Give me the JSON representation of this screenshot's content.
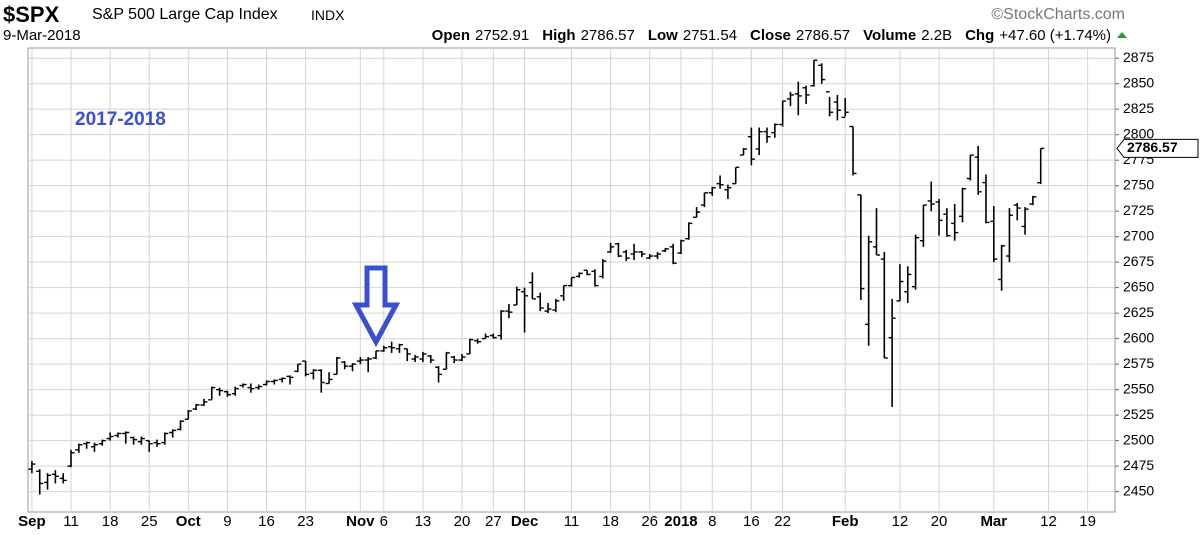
{
  "chart_data": {
    "type": "ohlc",
    "title": "$SPX",
    "subtitle": "S&P 500 Large Cap Index",
    "exchange": "INDX",
    "date": "9-Mar-2018",
    "source": "©StockCharts.com",
    "annotation": "2017-2018",
    "volume_label": "Volume",
    "volume": "2.2B",
    "change_label": "Chg",
    "change": "+47.60 (+1.74%)",
    "color": "#000000",
    "grid": true,
    "ylim": [
      2430,
      2885
    ],
    "yticks": [
      2450,
      2475,
      2500,
      2525,
      2550,
      2575,
      2600,
      2625,
      2650,
      2675,
      2700,
      2725,
      2750,
      2775,
      2800,
      2825,
      2850,
      2875
    ],
    "categories": [
      "Sep",
      null,
      null,
      null,
      null,
      "11",
      null,
      null,
      null,
      null,
      "18",
      null,
      null,
      null,
      null,
      "25",
      null,
      null,
      null,
      null,
      "Oct",
      null,
      null,
      null,
      null,
      "9",
      null,
      null,
      null,
      null,
      "16",
      null,
      null,
      null,
      null,
      "23",
      null,
      null,
      null,
      null,
      null,
      null,
      "Nov",
      null,
      null,
      "6",
      null,
      null,
      null,
      null,
      "13",
      null,
      null,
      null,
      null,
      "20",
      null,
      null,
      null,
      "27",
      null,
      null,
      null,
      "Dec",
      null,
      null,
      null,
      null,
      null,
      "11",
      null,
      null,
      null,
      null,
      "18",
      null,
      null,
      null,
      null,
      "26",
      null,
      null,
      null,
      "2018",
      null,
      null,
      null,
      "8",
      null,
      null,
      null,
      null,
      "16",
      null,
      null,
      null,
      "22",
      null,
      null,
      null,
      null,
      null,
      null,
      null,
      "Feb",
      null,
      null,
      null,
      null,
      null,
      null,
      "12",
      null,
      null,
      null,
      null,
      "20",
      null,
      null,
      null,
      null,
      null,
      null,
      "Mar",
      null,
      null,
      null,
      null,
      null,
      null,
      "12",
      null,
      null,
      null,
      null,
      "19",
      null,
      null,
      null
    ],
    "series": [
      {
        "name": "Open",
        "values": [
          2472,
          2470,
          2459,
          2467,
          2463,
          2475,
          2491,
          2497,
          2494,
          2497,
          2502,
          2505,
          2507,
          2503,
          2499,
          2500,
          2498,
          2498,
          2508,
          2511,
          2521,
          2531,
          2535,
          2540,
          2550,
          2548,
          2546,
          2554,
          2552,
          2552,
          2555,
          2558,
          2560,
          2563,
          2568,
          2578,
          2566,
          2569,
          2556,
          2565,
          2577,
          2573,
          2578,
          2579,
          2581,
          2588,
          2592,
          2590,
          2590,
          2580,
          2580,
          2583,
          2572,
          2570,
          2582,
          2579,
          2585,
          2598,
          2600,
          2603,
          2603,
          2627,
          2633,
          2646,
          2655,
          2641,
          2627,
          2628,
          2642,
          2652,
          2661,
          2667,
          2666,
          2661,
          2685,
          2693,
          2685,
          2683,
          2685,
          2679,
          2681,
          2686,
          2690,
          2684,
          2698,
          2719,
          2731,
          2743,
          2752,
          2746,
          2752,
          2780,
          2798,
          2786,
          2803,
          2802,
          2810,
          2835,
          2840,
          2846,
          2848,
          2868,
          2842,
          2832,
          2817,
          2808,
          2741,
          2614,
          2690,
          2678,
          2601,
          2637,
          2646,
          2651,
          2696,
          2735,
          2734,
          2722,
          2713,
          2720,
          2757,
          2778,
          2753,
          2715,
          2658,
          2681,
          2731,
          2710,
          2732,
          2752.91,
          null,
          null,
          null,
          null,
          null,
          null,
          null,
          null,
          null
        ]
      },
      {
        "name": "High",
        "values": [
          2480,
          2472,
          2468,
          2471,
          2468,
          2491,
          2497,
          2499,
          2498,
          2501,
          2508,
          2508,
          2509,
          2504,
          2504,
          2500,
          2501,
          2508,
          2511,
          2520,
          2530,
          2536,
          2541,
          2553,
          2552,
          2549,
          2553,
          2556,
          2556,
          2555,
          2559,
          2560,
          2562,
          2564,
          2575,
          2578,
          2570,
          2570,
          2567,
          2582,
          2578,
          2576,
          2582,
          2582,
          2588,
          2593,
          2597,
          2595,
          2590,
          2584,
          2587,
          2584,
          2573,
          2587,
          2583,
          2585,
          2600,
          2600,
          2605,
          2605,
          2628,
          2634,
          2651,
          2650,
          2665,
          2645,
          2635,
          2639,
          2652,
          2660,
          2665,
          2667,
          2668,
          2678,
          2694,
          2694,
          2687,
          2693,
          2686,
          2683,
          2685,
          2689,
          2693,
          2697,
          2714,
          2729,
          2743,
          2749,
          2760,
          2751,
          2768,
          2787,
          2807,
          2807,
          2807,
          2811,
          2833,
          2842,
          2852,
          2848,
          2873,
          2870,
          2837,
          2839,
          2836,
          2808,
          2741,
          2701,
          2728,
          2685,
          2639,
          2673,
          2671,
          2702,
          2731,
          2754,
          2737,
          2728,
          2732,
          2748,
          2780,
          2789,
          2761,
          2730,
          2692,
          2728,
          2733,
          2729,
          2740,
          2786.57,
          null,
          null,
          null,
          null,
          null,
          null,
          null,
          null,
          null
        ]
      },
      {
        "name": "Low",
        "values": [
          2468,
          2447,
          2452,
          2458,
          2458,
          2474,
          2488,
          2492,
          2489,
          2495,
          2500,
          2503,
          2497,
          2496,
          2496,
          2489,
          2494,
          2496,
          2503,
          2510,
          2521,
          2530,
          2534,
          2540,
          2544,
          2543,
          2544,
          2552,
          2547,
          2550,
          2554,
          2555,
          2557,
          2555,
          2567,
          2563,
          2560,
          2547,
          2556,
          2565,
          2570,
          2568,
          2575,
          2567,
          2580,
          2587,
          2586,
          2586,
          2578,
          2577,
          2577,
          2576,
          2557,
          2570,
          2576,
          2578,
          2585,
          2595,
          2600,
          2600,
          2599,
          2620,
          2633,
          2606,
          2639,
          2627,
          2625,
          2626,
          2637,
          2651,
          2660,
          2662,
          2651,
          2659,
          2684,
          2680,
          2676,
          2677,
          2680,
          2678,
          2678,
          2685,
          2673,
          2683,
          2697,
          2719,
          2729,
          2740,
          2747,
          2737,
          2752,
          2780,
          2770,
          2780,
          2792,
          2797,
          2808,
          2828,
          2819,
          2830,
          2847,
          2850,
          2818,
          2814,
          2818,
          2760,
          2638,
          2593,
          2682,
          2581,
          2533,
          2637,
          2635,
          2648,
          2690,
          2725,
          2701,
          2700,
          2696,
          2714,
          2755,
          2741,
          2713,
          2675,
          2647,
          2675,
          2716,
          2702,
          2731,
          2751.54,
          null,
          null,
          null,
          null,
          null,
          null,
          null,
          null,
          null
        ]
      },
      {
        "name": "Close",
        "values": [
          2477,
          2458,
          2466,
          2465,
          2461,
          2488,
          2496,
          2498,
          2496,
          2500,
          2504,
          2507,
          2508,
          2501,
          2502,
          2497,
          2497,
          2507,
          2510,
          2519,
          2529,
          2535,
          2538,
          2552,
          2549,
          2545,
          2551,
          2555,
          2551,
          2553,
          2558,
          2559,
          2561,
          2562,
          2575,
          2565,
          2569,
          2557,
          2560,
          2581,
          2573,
          2575,
          2579,
          2580,
          2588,
          2591,
          2591,
          2594,
          2585,
          2582,
          2585,
          2579,
          2565,
          2586,
          2579,
          2582,
          2599,
          2597,
          2602,
          2601,
          2627,
          2626,
          2648,
          2642,
          2639,
          2630,
          2629,
          2637,
          2652,
          2660,
          2664,
          2663,
          2652,
          2676,
          2690,
          2681,
          2679,
          2685,
          2683,
          2681,
          2683,
          2688,
          2674,
          2696,
          2713,
          2724,
          2743,
          2748,
          2751,
          2748,
          2768,
          2786,
          2776,
          2803,
          2798,
          2810,
          2833,
          2839,
          2838,
          2839,
          2873,
          2854,
          2822,
          2824,
          2822,
          2762,
          2649,
          2695,
          2682,
          2581,
          2620,
          2656,
          2663,
          2699,
          2731,
          2732,
          2716,
          2701,
          2704,
          2747,
          2780,
          2744,
          2714,
          2678,
          2691,
          2721,
          2728,
          2727,
          2739,
          2786.57,
          null,
          null,
          null,
          null,
          null,
          null,
          null,
          null,
          null
        ]
      }
    ]
  }
}
